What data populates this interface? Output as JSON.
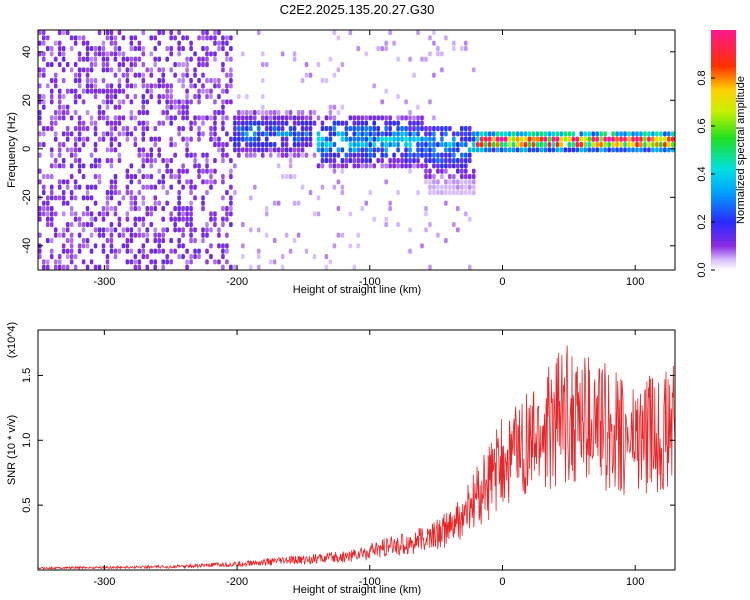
{
  "title": "C2E2.2025.135.20.27.G30",
  "chart_data": [
    {
      "type": "heatmap",
      "title": "C2E2.2025.135.20.27.G30",
      "xlabel": "Height of straight line (km)",
      "ylabel": "Frequency (Hz)",
      "xlim": [
        -350,
        130
      ],
      "ylim": [
        -50,
        49
      ],
      "x_ticks": [
        -300,
        -200,
        -100,
        0,
        100
      ],
      "x_tick_labels": [
        "-300",
        "-200",
        "-100",
        "0",
        "100"
      ],
      "y_ticks": [
        -40,
        -20,
        0,
        20,
        40
      ],
      "y_tick_labels": [
        "-40",
        "-20",
        "0",
        "20",
        "40"
      ],
      "colorbar": {
        "label": "Normalized spectral amplitude",
        "range": [
          0,
          1
        ],
        "ticks": [
          0.0,
          0.2,
          0.4,
          0.6,
          0.8
        ],
        "tick_labels": [
          "0.0",
          "0.2",
          "0.4",
          "0.6",
          "0.8"
        ],
        "colormap": "purple-blue-cyan-green-yellow-red-magenta"
      },
      "regions": [
        {
          "x_range": [
            -350,
            -205
          ],
          "freq_range": [
            -50,
            49
          ],
          "amplitude": 0.1,
          "description": "broadband scattered"
        },
        {
          "x_range": [
            -205,
            -140
          ],
          "freq_range": [
            -5,
            15
          ],
          "amplitude": 0.25,
          "center_freq": 5
        },
        {
          "x_range": [
            -140,
            -60
          ],
          "freq_range": [
            -10,
            12
          ],
          "amplitude": 0.35,
          "center_freq": 2
        },
        {
          "x_range": [
            -60,
            -20
          ],
          "freq_range": [
            -20,
            8
          ],
          "amplitude": 0.3,
          "center_freq": 0
        },
        {
          "x_range": [
            -20,
            130
          ],
          "freq_range": [
            -2,
            6
          ],
          "amplitude": 0.95,
          "center_freq": 2
        }
      ]
    },
    {
      "type": "line",
      "xlabel": "Height of straight line (km)",
      "ylabel": "SNR (10 * v/v)",
      "y_multiplier": "(x10^4)",
      "xlim": [
        -350,
        130
      ],
      "ylim": [
        0,
        18500
      ],
      "x_ticks": [
        -300,
        -200,
        -100,
        0,
        100
      ],
      "x_tick_labels": [
        "-300",
        "-200",
        "-100",
        "0",
        "100"
      ],
      "y_ticks": [
        5000,
        10000,
        15000
      ],
      "y_tick_labels": [
        "0.5",
        "1.0",
        "1.5"
      ],
      "color": "#e8262a",
      "series": [
        {
          "x": [
            -350,
            -300,
            -250,
            -200,
            -180,
            -150,
            -120,
            -100,
            -80,
            -60,
            -40,
            -30,
            -20,
            -10,
            0,
            10,
            20,
            30,
            40,
            50,
            60,
            70,
            80,
            90,
            100,
            110,
            120,
            130
          ],
          "values": [
            150,
            200,
            250,
            450,
            600,
            800,
            1000,
            1400,
            1900,
            2300,
            3200,
            4000,
            5500,
            6800,
            8200,
            9300,
            9500,
            10500,
            11500,
            12000,
            11700,
            11200,
            11000,
            10200,
            10100,
            10400,
            10700,
            10900
          ]
        }
      ]
    }
  ]
}
